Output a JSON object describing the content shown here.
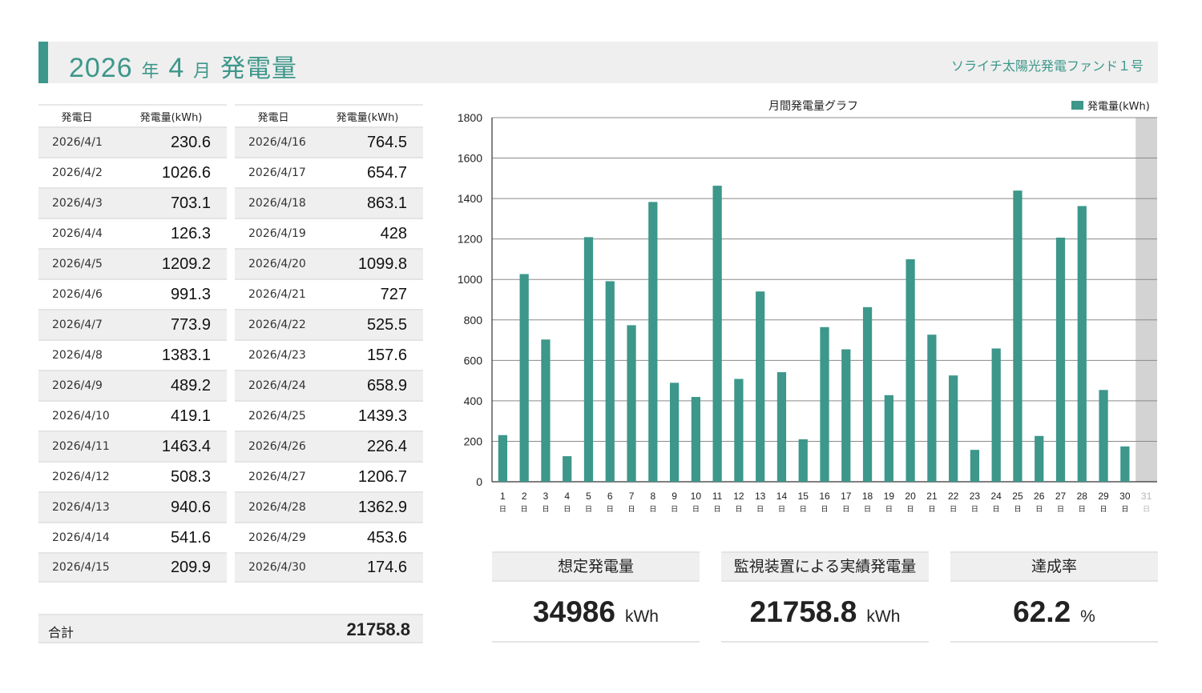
{
  "header": {
    "year": "2026",
    "year_suffix": "年",
    "month": "4",
    "month_suffix": "月",
    "title_word": "発電量",
    "fund_name": "ソライチ太陽光発電ファンド１号"
  },
  "table": {
    "col_date": "発電日",
    "col_output": "発電量(kWh)",
    "left_rows": [
      {
        "date": "2026/4/1",
        "value": "230.6"
      },
      {
        "date": "2026/4/2",
        "value": "1026.6"
      },
      {
        "date": "2026/4/3",
        "value": "703.1"
      },
      {
        "date": "2026/4/4",
        "value": "126.3"
      },
      {
        "date": "2026/4/5",
        "value": "1209.2"
      },
      {
        "date": "2026/4/6",
        "value": "991.3"
      },
      {
        "date": "2026/4/7",
        "value": "773.9"
      },
      {
        "date": "2026/4/8",
        "value": "1383.1"
      },
      {
        "date": "2026/4/9",
        "value": "489.2"
      },
      {
        "date": "2026/4/10",
        "value": "419.1"
      },
      {
        "date": "2026/4/11",
        "value": "1463.4"
      },
      {
        "date": "2026/4/12",
        "value": "508.3"
      },
      {
        "date": "2026/4/13",
        "value": "940.6"
      },
      {
        "date": "2026/4/14",
        "value": "541.6"
      },
      {
        "date": "2026/4/15",
        "value": "209.9"
      }
    ],
    "right_rows": [
      {
        "date": "2026/4/16",
        "value": "764.5"
      },
      {
        "date": "2026/4/17",
        "value": "654.7"
      },
      {
        "date": "2026/4/18",
        "value": "863.1"
      },
      {
        "date": "2026/4/19",
        "value": "428"
      },
      {
        "date": "2026/4/20",
        "value": "1099.8"
      },
      {
        "date": "2026/4/21",
        "value": "727"
      },
      {
        "date": "2026/4/22",
        "value": "525.5"
      },
      {
        "date": "2026/4/23",
        "value": "157.6"
      },
      {
        "date": "2026/4/24",
        "value": "658.9"
      },
      {
        "date": "2026/4/25",
        "value": "1439.3"
      },
      {
        "date": "2026/4/26",
        "value": "226.4"
      },
      {
        "date": "2026/4/27",
        "value": "1206.7"
      },
      {
        "date": "2026/4/28",
        "value": "1362.9"
      },
      {
        "date": "2026/4/29",
        "value": "453.6"
      },
      {
        "date": "2026/4/30",
        "value": "174.6"
      }
    ],
    "total_label": "合計",
    "total_value": "21758.8"
  },
  "kpis": {
    "expected": {
      "label": "想定発電量",
      "value": "34986",
      "unit": "kWh"
    },
    "actual": {
      "label": "監視装置による実績発電量",
      "value": "21758.8",
      "unit": "kWh"
    },
    "rate": {
      "label": "達成率",
      "value": "62.2",
      "unit": "%"
    }
  },
  "chart_data": {
    "type": "bar",
    "title": "月間発電量グラフ",
    "legend": "発電量(kWh)",
    "legend_position": "top-right",
    "color": "#3d978a",
    "grid": true,
    "ylim": [
      0,
      1800
    ],
    "yticks": [
      0,
      200,
      400,
      600,
      800,
      1000,
      1200,
      1400,
      1600,
      1800
    ],
    "categories": [
      "1",
      "2",
      "3",
      "4",
      "5",
      "6",
      "7",
      "8",
      "9",
      "10",
      "11",
      "12",
      "13",
      "14",
      "15",
      "16",
      "17",
      "18",
      "19",
      "20",
      "21",
      "22",
      "23",
      "24",
      "25",
      "26",
      "27",
      "28",
      "29",
      "30",
      "31"
    ],
    "category_suffix": "日",
    "values": [
      230.6,
      1026.6,
      703.1,
      126.3,
      1209.2,
      991.3,
      773.9,
      1383.1,
      489.2,
      419.1,
      1463.4,
      508.3,
      940.6,
      541.6,
      209.9,
      764.5,
      654.7,
      863.1,
      428,
      1099.8,
      727,
      525.5,
      157.6,
      658.9,
      1439.3,
      226.4,
      1206.7,
      1362.9,
      453.6,
      174.6,
      null
    ],
    "shaded_categories": [
      "31"
    ],
    "shade_color": "#d3d3d3"
  }
}
